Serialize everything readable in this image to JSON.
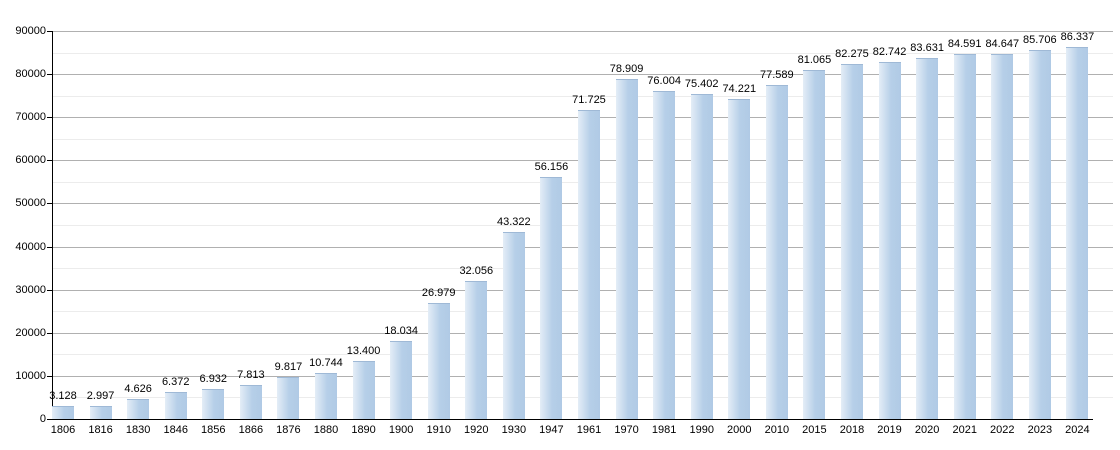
{
  "chart_data": {
    "type": "bar",
    "title": "",
    "xlabel": "",
    "ylabel": "",
    "categories": [
      "1806",
      "1816",
      "1830",
      "1846",
      "1856",
      "1866",
      "1876",
      "1880",
      "1890",
      "1900",
      "1910",
      "1920",
      "1930",
      "1947",
      "1961",
      "1970",
      "1981",
      "1990",
      "2000",
      "2010",
      "2015",
      "2018",
      "2019",
      "2020",
      "2021",
      "2022",
      "2023",
      "2024"
    ],
    "values": [
      3128,
      2997,
      4626,
      6372,
      6932,
      7813,
      9817,
      10744,
      13400,
      18034,
      26979,
      32056,
      43322,
      56156,
      71725,
      78909,
      76004,
      75402,
      74221,
      77589,
      81065,
      82275,
      82742,
      83631,
      84591,
      84647,
      85706,
      86337
    ],
    "value_labels": [
      "3.128",
      "2.997",
      "4.626",
      "6.372",
      "6.932",
      "7.813",
      "9.817",
      "10.744",
      "13.400",
      "18.034",
      "26.979",
      "32.056",
      "43.322",
      "56.156",
      "71.725",
      "78.909",
      "76.004",
      "75.402",
      "74.221",
      "77.589",
      "81.065",
      "82.275",
      "82.742",
      "83.631",
      "84.591",
      "84.647",
      "85.706",
      "86.337"
    ],
    "y_ticks": [
      "0",
      "10000",
      "20000",
      "30000",
      "40000",
      "50000",
      "60000",
      "70000",
      "80000",
      "90000"
    ],
    "ylim": [
      0,
      90000
    ],
    "y_major_step": 10000,
    "y_minor_step": 5000,
    "grid": "on",
    "legend": "none",
    "colors": {
      "bar_light": "#e4edf7",
      "bar_main": "#b6cfe8",
      "bar_edge": "#b0cae5",
      "grid_major": "#b0b0b0",
      "grid_minor": "#ececec",
      "axis": "#000000",
      "text": "#000000"
    }
  }
}
